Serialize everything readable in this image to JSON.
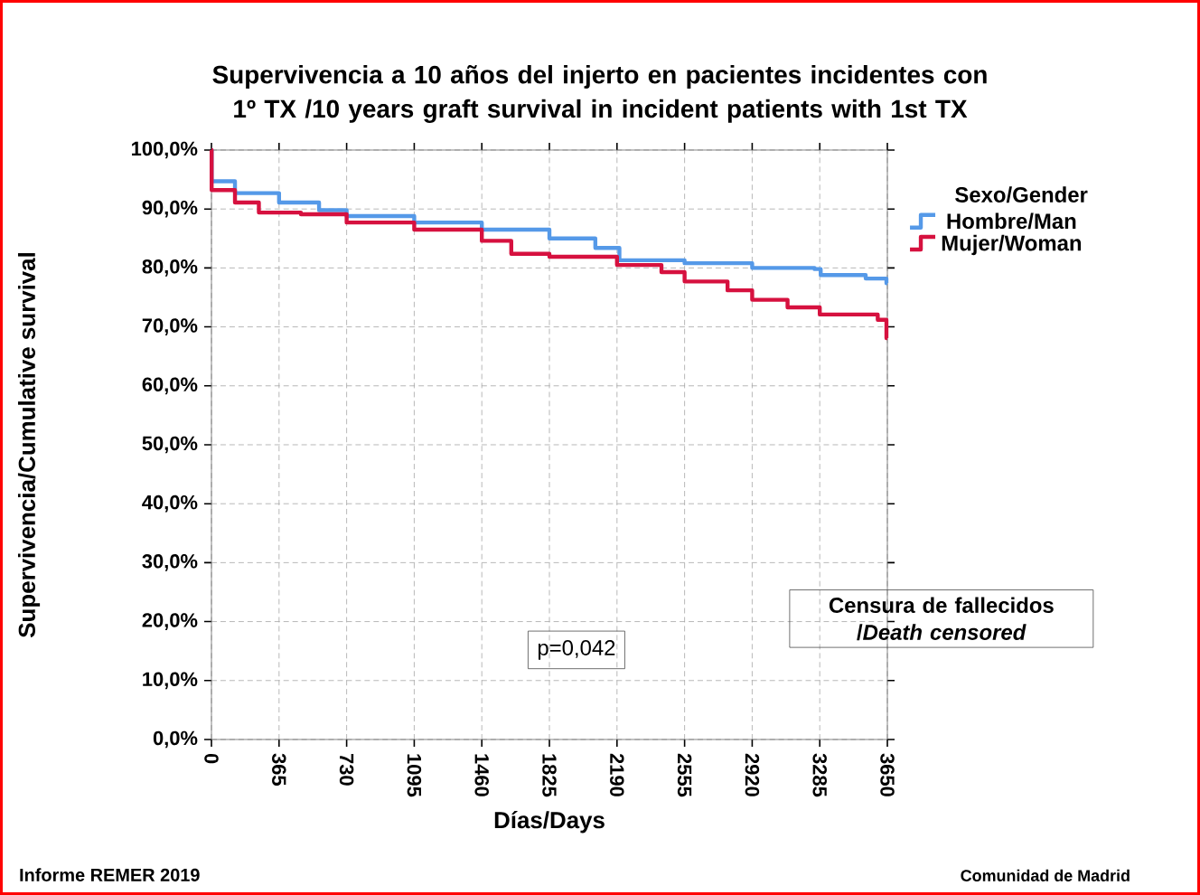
{
  "chart_data": {
    "type": "step",
    "title": "Supervivencia a 10 años del injerto en pacientes incidentes con 1º TX /10 years graft survival in incident patients with 1st TX",
    "xlabel": "Días/Days",
    "ylabel": "Supervivencia/Cumulative survival",
    "legend_title": "Sexo/Gender",
    "series": [
      {
        "name": "Hombre/Man",
        "color": "#5599e8",
        "x": [
          0,
          1,
          127,
          365,
          581,
          730,
          1095,
          1460,
          1825,
          2073,
          2203,
          2555,
          2920,
          3257,
          3290,
          3533,
          3645,
          3650
        ],
        "values": [
          100,
          94.7,
          92.7,
          91.1,
          89.8,
          88.8,
          87.7,
          86.5,
          85.0,
          83.4,
          81.3,
          80.8,
          80.0,
          79.8,
          78.8,
          78.2,
          77.4,
          77.4
        ]
      },
      {
        "name": "Mujer/Woman",
        "color": "#d6113f",
        "x": [
          0,
          1,
          127,
          256,
          483,
          730,
          1095,
          1460,
          1619,
          1825,
          2190,
          2430,
          2555,
          2787,
          2920,
          3111,
          3285,
          3598,
          3645,
          3650
        ],
        "values": [
          100,
          93.2,
          91.1,
          89.4,
          89.1,
          87.7,
          86.5,
          84.6,
          82.4,
          81.9,
          80.5,
          79.3,
          77.7,
          76.2,
          74.6,
          73.3,
          72.1,
          71.2,
          68.1,
          68.1
        ]
      }
    ],
    "xlim": [
      0,
      3650
    ],
    "xticks": [
      0,
      365,
      730,
      1095,
      1460,
      1825,
      2190,
      2555,
      2920,
      3285,
      3650
    ],
    "ylim": [
      0,
      100
    ],
    "yticks": [
      {
        "value": 0,
        "label": "0,0%"
      },
      {
        "value": 10,
        "label": "10,0%"
      },
      {
        "value": 20,
        "label": "20,0%"
      },
      {
        "value": 30,
        "label": "30,0%"
      },
      {
        "value": 40,
        "label": "40,0%"
      },
      {
        "value": 50,
        "label": "50,0%"
      },
      {
        "value": 60,
        "label": "60,0%"
      },
      {
        "value": 70,
        "label": "70,0%"
      },
      {
        "value": 80,
        "label": "80,0%"
      },
      {
        "value": 90,
        "label": "90,0%"
      },
      {
        "value": 100,
        "label": "100,0%"
      }
    ],
    "grid": true,
    "legend": "right",
    "line_style": "solid",
    "marker": "none",
    "annotations": [
      "p=0,042",
      "Censura de fallecidos /*Death censored*",
      "Informe REMER 2019",
      "Comunidad de Madrid"
    ]
  }
}
